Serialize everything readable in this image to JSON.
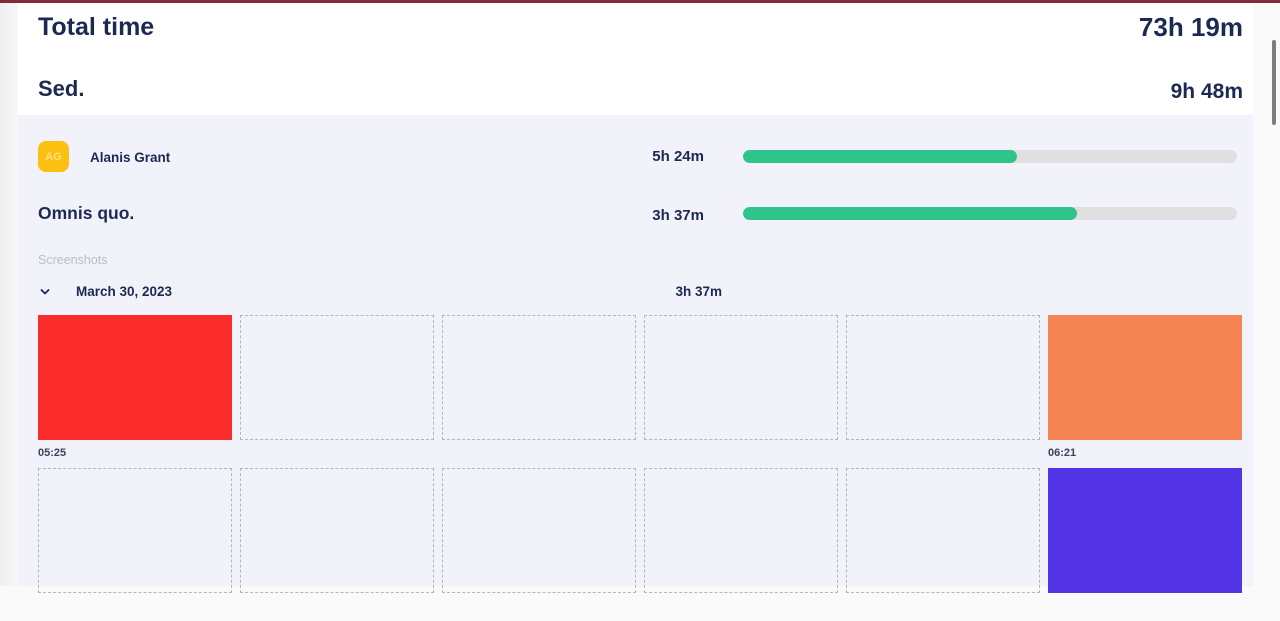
{
  "header": {
    "total_time_label": "Total time",
    "total_time_value": "73h 19m",
    "day_label": "Sed.",
    "day_value": "9h 48m"
  },
  "member": {
    "initials": "AG",
    "name": "Alanis Grant",
    "time": "5h 24m",
    "progress_pct": 55.5
  },
  "project": {
    "name": "Omnis quo.",
    "time": "3h 37m",
    "progress_pct": 67.6
  },
  "screenshots": {
    "section_label": "Screenshots",
    "date": "March 30, 2023",
    "date_total": "3h 37m",
    "rows": [
      {
        "tiles": [
          {
            "type": "image",
            "color": "#fb2c2c",
            "time": "05:25"
          },
          {
            "type": "empty"
          },
          {
            "type": "empty"
          },
          {
            "type": "empty"
          },
          {
            "type": "empty"
          },
          {
            "type": "image",
            "color": "#f58455",
            "time": "06:21"
          }
        ]
      },
      {
        "tiles": [
          {
            "type": "empty"
          },
          {
            "type": "empty"
          },
          {
            "type": "empty"
          },
          {
            "type": "empty"
          },
          {
            "type": "empty"
          },
          {
            "type": "image",
            "color": "#5334e6",
            "time": ""
          }
        ]
      }
    ]
  },
  "colors": {
    "accent_green": "#2fc48a",
    "track_gray": "#e0e0e0",
    "avatar_yellow": "#fcc013",
    "text_navy": "#1c2951",
    "panel_lavender": "#f1f2fa",
    "top_border": "#85293b"
  }
}
